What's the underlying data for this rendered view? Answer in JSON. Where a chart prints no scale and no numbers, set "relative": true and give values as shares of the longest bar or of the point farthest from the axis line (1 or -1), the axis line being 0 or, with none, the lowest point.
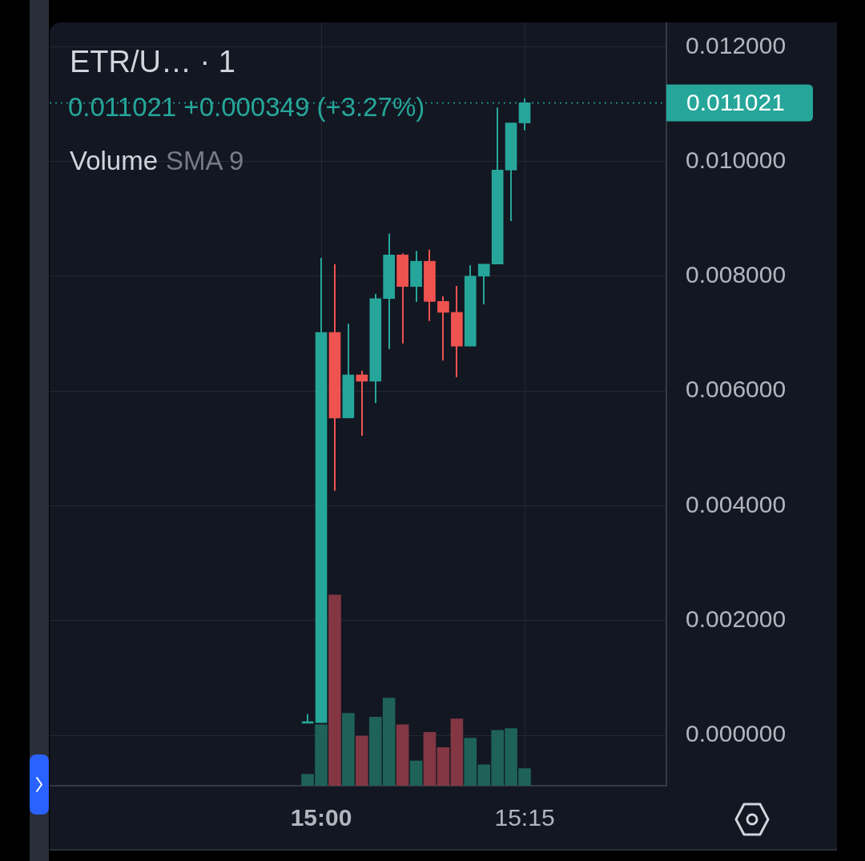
{
  "chart_data": [
    {
      "type": "candlestick",
      "title": "ETR/U… · 1",
      "subtitle": "0.011021 +0.000349 (+3.27%)",
      "x": [
        14.9833,
        15,
        15.0167,
        15.0333,
        15.05,
        15.0667,
        15.0833,
        15.1,
        15.1167,
        15.1333,
        15.15,
        15.1667,
        15.1833,
        15.2,
        15.2167,
        15.2333,
        15.25
      ],
      "ohlc": [
        [
          0.00021,
          0.00037,
          0.00021,
          0.00022
        ],
        [
          0.00022,
          0.00832,
          0.00022,
          0.00702
        ],
        [
          0.00702,
          0.00821,
          0.00426,
          0.00553
        ],
        [
          0.00553,
          0.00717,
          0.00553,
          0.00628
        ],
        [
          0.00628,
          0.00635,
          0.00522,
          0.00617
        ],
        [
          0.00617,
          0.00769,
          0.00579,
          0.00761
        ],
        [
          0.00761,
          0.00874,
          0.00673,
          0.00837
        ],
        [
          0.00837,
          0.0084,
          0.00683,
          0.00782
        ],
        [
          0.00782,
          0.00844,
          0.00755,
          0.00826
        ],
        [
          0.00826,
          0.00846,
          0.00722,
          0.00756
        ],
        [
          0.00756,
          0.00765,
          0.00653,
          0.00737
        ],
        [
          0.00737,
          0.00783,
          0.00624,
          0.00678
        ],
        [
          0.00678,
          0.00819,
          0.00678,
          0.008
        ],
        [
          0.008,
          0.00821,
          0.00751,
          0.00821
        ],
        [
          0.00821,
          0.01094,
          0.00821,
          0.00985
        ],
        [
          0.00985,
          0.01067,
          0.00896,
          0.01067
        ],
        [
          0.01067,
          0.0111,
          0.01054,
          0.011021
        ]
      ],
      "colors": [
        "#26a69a",
        "#26a69a",
        "#ef5350",
        "#26a69a",
        "#ef5350",
        "#26a69a",
        "#26a69a",
        "#ef5350",
        "#26a69a",
        "#ef5350",
        "#ef5350",
        "#ef5350",
        "#26a69a",
        "#26a69a",
        "#26a69a",
        "#26a69a",
        "#26a69a"
      ],
      "xlim": [
        14.6663,
        15.4242
      ],
      "xticks": [
        {
          "value": 15,
          "label": "15:00"
        },
        {
          "value": 15.25,
          "label": "15:15"
        }
      ],
      "ylim": [
        -0.000879,
        0.012422
      ],
      "yticks": [
        {
          "value": 0,
          "label": "0.000000"
        },
        {
          "value": 0.002,
          "label": "0.002000"
        },
        {
          "value": 0.004,
          "label": "0.004000"
        },
        {
          "value": 0.006,
          "label": "0.006000"
        },
        {
          "value": 0.008,
          "label": "0.008000"
        },
        {
          "value": 0.01,
          "label": "0.010000"
        },
        {
          "value": 0.012,
          "label": "0.012000"
        }
      ],
      "grid": true,
      "ref_lines": [
        {
          "axis": "y",
          "value": 0.011021,
          "label": "0.011021",
          "color": "#26a69a",
          "line_style": "dotted"
        }
      ]
    },
    {
      "type": "bar",
      "title": "Volume",
      "subtitle": "SMA 9",
      "relative": true,
      "x": [
        14.9833,
        15,
        15.0167,
        15.0333,
        15.05,
        15.0667,
        15.0833,
        15.1,
        15.1167,
        15.1333,
        15.15,
        15.1667,
        15.1833,
        15.2,
        15.2167,
        15.2333,
        15.25
      ],
      "xlim": [
        14.6663,
        15.4242
      ],
      "values": [
        0.06,
        0.32,
        1,
        0.38,
        0.26,
        0.36,
        0.46,
        0.32,
        0.13,
        0.28,
        0.2,
        0.35,
        0.25,
        0.11,
        0.29,
        0.3,
        0.09
      ],
      "colors": [
        "#1e6258",
        "#1e6258",
        "#823742",
        "#1e6258",
        "#823742",
        "#1e6258",
        "#1e6258",
        "#823742",
        "#1e6258",
        "#823742",
        "#823742",
        "#823742",
        "#1e6258",
        "#1e6258",
        "#1e6258",
        "#1e6258",
        "#1e6258"
      ]
    }
  ]
}
